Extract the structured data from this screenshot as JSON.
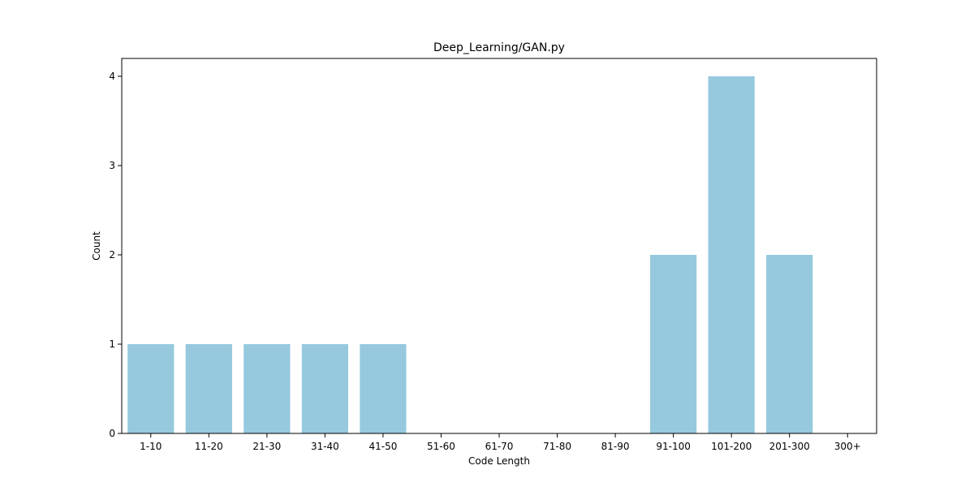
{
  "chart_data": {
    "type": "bar",
    "title": "Deep_Learning/GAN.py",
    "xlabel": "Code Length",
    "ylabel": "Count",
    "categories": [
      "1-10",
      "11-20",
      "21-30",
      "31-40",
      "41-50",
      "51-60",
      "61-70",
      "71-80",
      "81-90",
      "91-100",
      "101-200",
      "201-300",
      "300+"
    ],
    "values": [
      1,
      1,
      1,
      1,
      1,
      0,
      0,
      0,
      0,
      2,
      4,
      2,
      0
    ],
    "ylim": [
      0,
      4.2
    ],
    "yticks": [
      0,
      1,
      2,
      3,
      4
    ],
    "bar_color": "#96c9de",
    "grid": false,
    "legend": false
  }
}
